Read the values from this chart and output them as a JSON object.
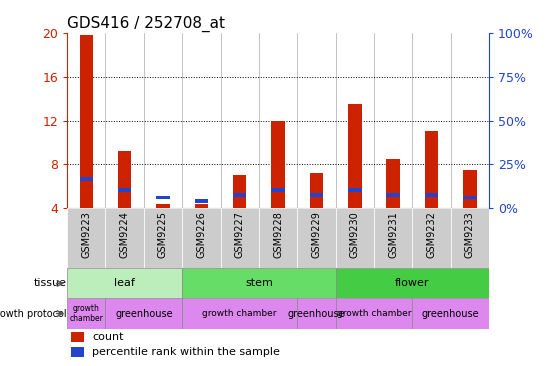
{
  "title": "GDS416 / 252708_at",
  "samples": [
    "GSM9223",
    "GSM9224",
    "GSM9225",
    "GSM9226",
    "GSM9227",
    "GSM9228",
    "GSM9229",
    "GSM9230",
    "GSM9231",
    "GSM9232",
    "GSM9233"
  ],
  "counts": [
    19.8,
    9.2,
    4.4,
    4.4,
    7.0,
    12.0,
    7.2,
    13.5,
    8.5,
    11.0,
    7.5
  ],
  "percentiles": [
    6.5,
    5.5,
    4.8,
    4.5,
    5.0,
    5.5,
    5.0,
    5.5,
    5.0,
    5.0,
    4.8
  ],
  "count_color": "#cc2200",
  "percentile_color": "#2244cc",
  "ylim_left": [
    4,
    20
  ],
  "ylim_right": [
    0,
    100
  ],
  "yticks_left": [
    4,
    8,
    12,
    16,
    20
  ],
  "yticks_right": [
    0,
    25,
    50,
    75,
    100
  ],
  "ytick_labels_right": [
    "0%",
    "25%",
    "50%",
    "75%",
    "100%"
  ],
  "tissue_data": [
    {
      "label": "leaf",
      "start": 0,
      "end": 2,
      "color": "#bbeebb"
    },
    {
      "label": "stem",
      "start": 3,
      "end": 6,
      "color": "#66dd66"
    },
    {
      "label": "flower",
      "start": 7,
      "end": 10,
      "color": "#44cc44"
    }
  ],
  "growth_data": [
    {
      "label": "growth\nchamber",
      "start": 0,
      "end": 0,
      "fontsize": 5.5
    },
    {
      "label": "greenhouse",
      "start": 1,
      "end": 2,
      "fontsize": 7
    },
    {
      "label": "growth chamber",
      "start": 3,
      "end": 5,
      "fontsize": 6.5
    },
    {
      "label": "greenhouse",
      "start": 6,
      "end": 6,
      "fontsize": 7
    },
    {
      "label": "growth chamber",
      "start": 7,
      "end": 8,
      "fontsize": 6.5
    },
    {
      "label": "greenhouse",
      "start": 9,
      "end": 10,
      "fontsize": 7
    }
  ],
  "growth_color": "#dd88ee",
  "tissue_label": "tissue",
  "growth_label": "growth protocol",
  "bar_width": 0.35,
  "bg_color": "#ffffff",
  "xticklabel_bg": "#cccccc",
  "grid_yticks": [
    8,
    12,
    16
  ]
}
